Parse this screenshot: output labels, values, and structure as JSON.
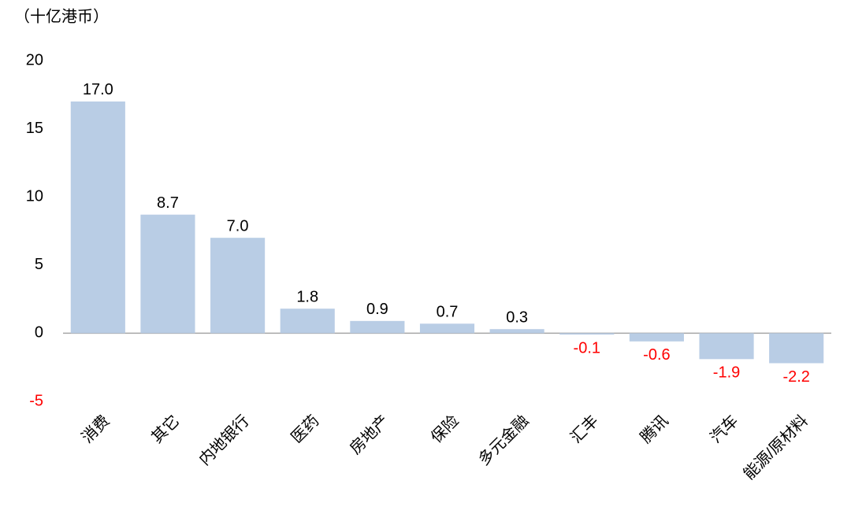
{
  "chart_data": {
    "type": "bar",
    "y_label": "（十亿港币）",
    "categories": [
      "消费",
      "其它",
      "内地银行",
      "医药",
      "房地产",
      "保险",
      "多元金融",
      "汇丰",
      "腾讯",
      "汽车",
      "能源/原材料"
    ],
    "values": [
      17.0,
      8.7,
      7.0,
      1.8,
      0.9,
      0.7,
      0.3,
      -0.1,
      -0.6,
      -1.9,
      -2.2
    ],
    "value_labels": [
      "17.0",
      "8.7",
      "7.0",
      "1.8",
      "0.9",
      "0.7",
      "0.3",
      "-0.1",
      "-0.6",
      "-1.9",
      "-2.2"
    ],
    "color": "#b9cde5",
    "negative_color": "#ff0000",
    "ylim": [
      -5,
      20
    ],
    "yticks": [
      -5,
      0,
      5,
      10,
      15,
      20
    ]
  }
}
